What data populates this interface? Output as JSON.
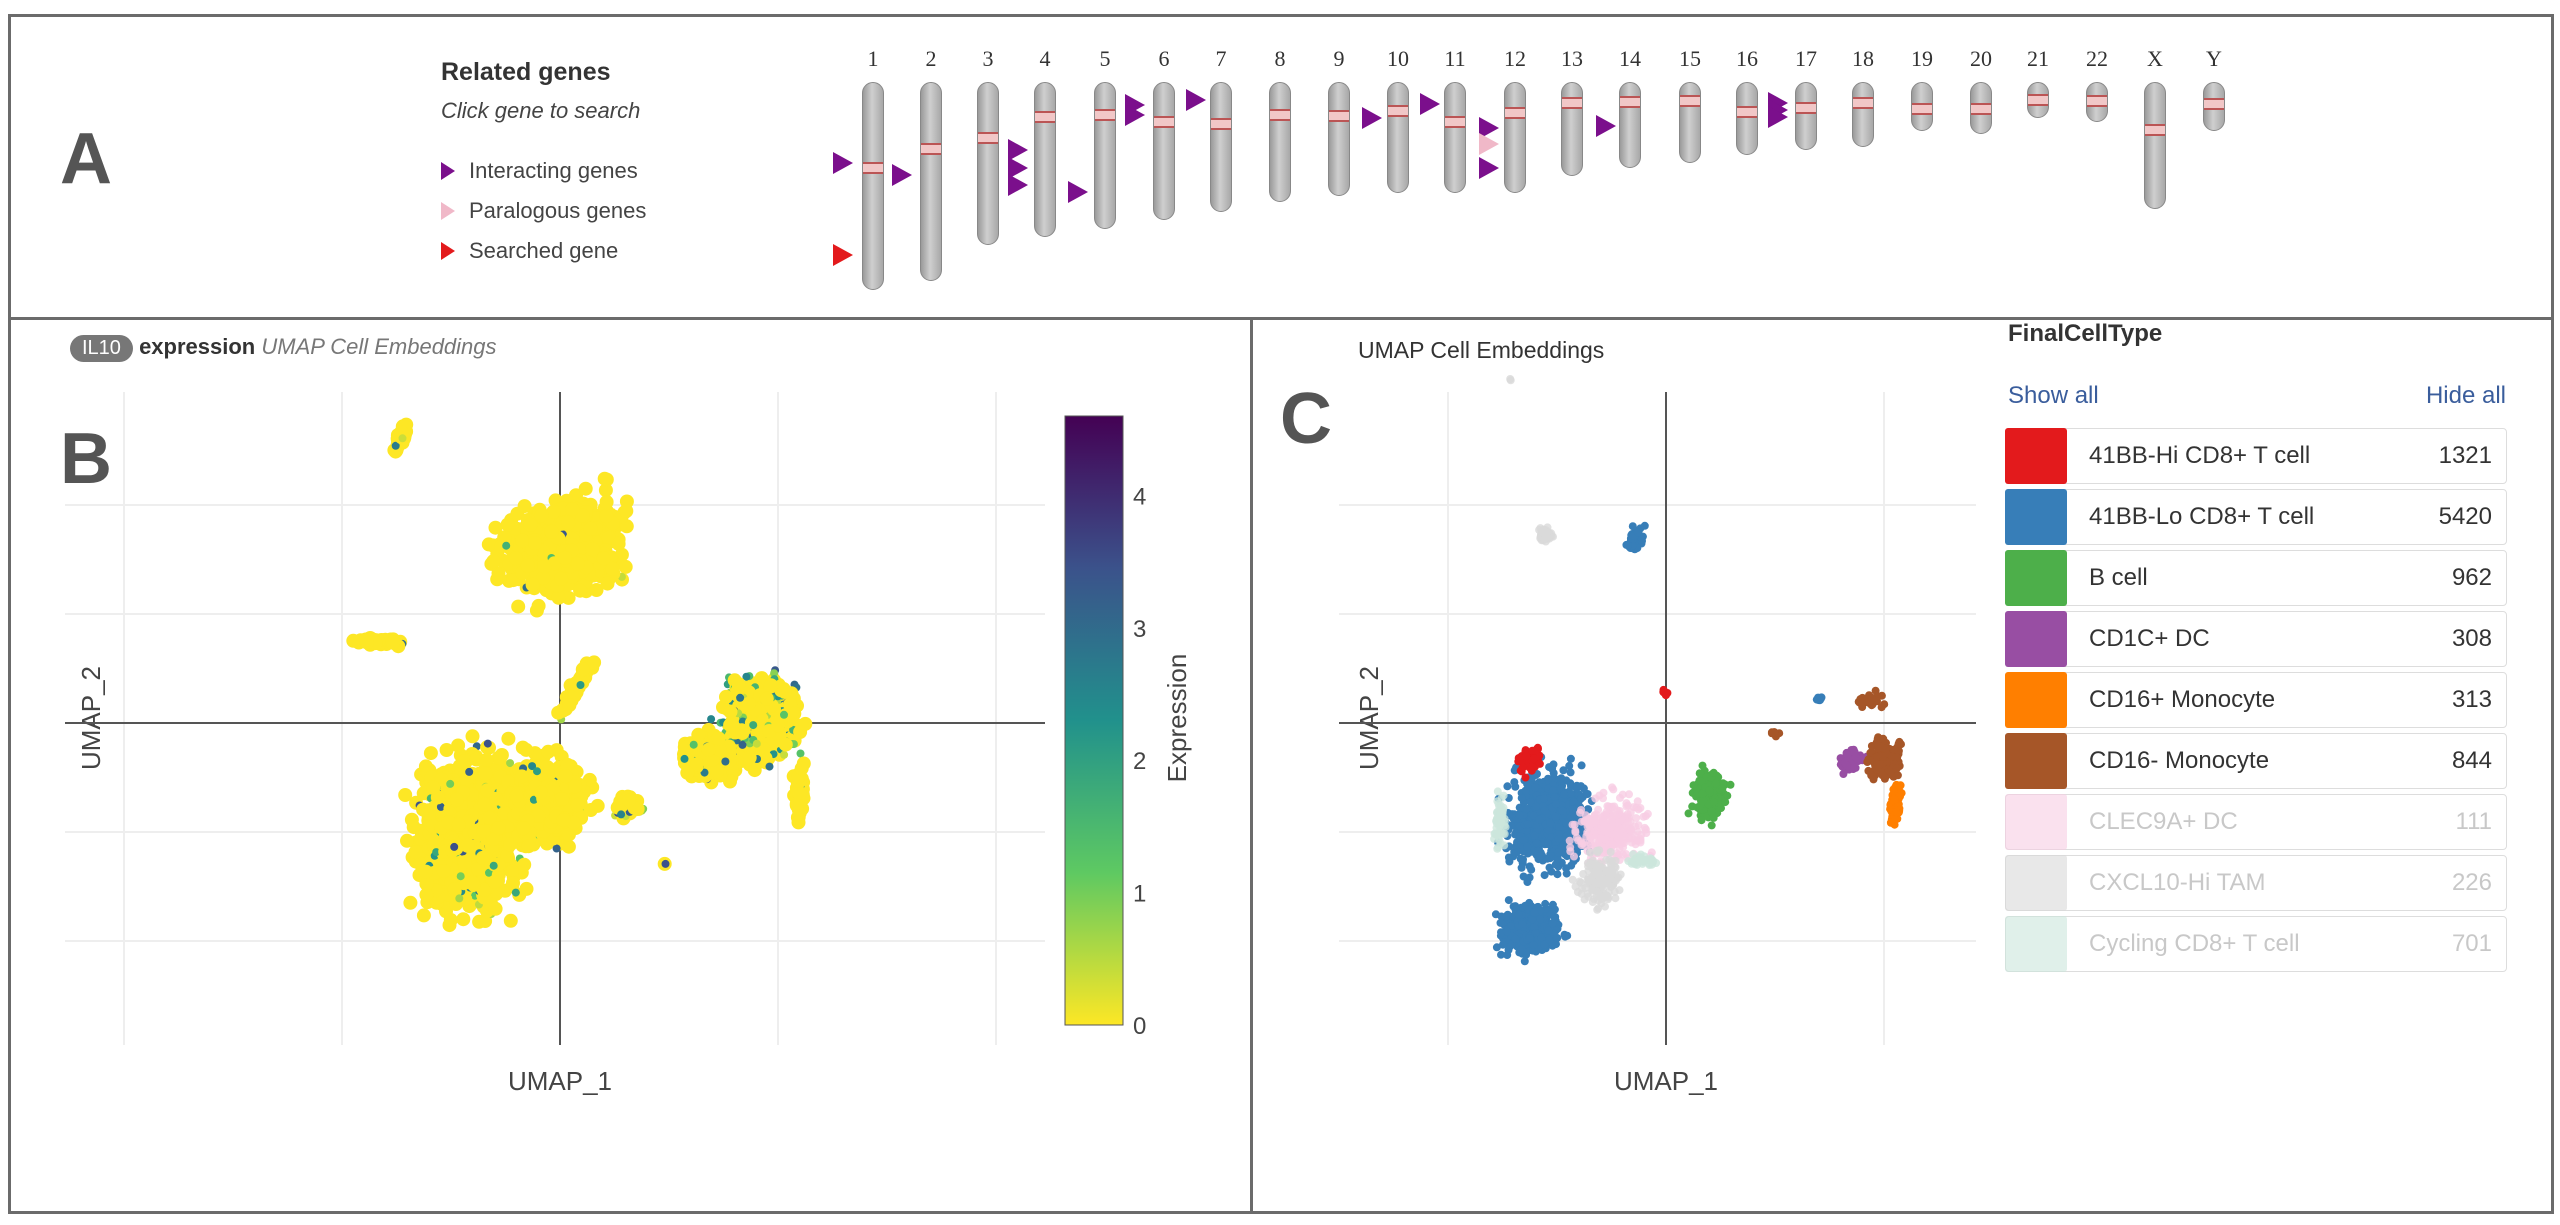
{
  "panel_a": {
    "letter": "A",
    "title": "Related genes",
    "subtitle": "Click gene to search",
    "legend": [
      {
        "label": "Interacting genes",
        "color": "#7b0f8c"
      },
      {
        "label": "Paralogous genes",
        "color": "#f0b8c8"
      },
      {
        "label": "Searched gene",
        "color": "#e31a1c"
      }
    ],
    "chromosomes": [
      "1",
      "2",
      "3",
      "4",
      "5",
      "6",
      "7",
      "8",
      "9",
      "10",
      "11",
      "12",
      "13",
      "14",
      "15",
      "16",
      "17",
      "18",
      "19",
      "20",
      "21",
      "22",
      "X",
      "Y"
    ]
  },
  "panel_b": {
    "letter": "B",
    "gene_badge": "IL10",
    "title_bold": "expression",
    "title_italic": "UMAP Cell Embeddings"
  },
  "panel_c": {
    "letter": "C",
    "title": "UMAP Cell Embeddings",
    "legend_title": "FinalCellType",
    "show_all": "Show all",
    "hide_all": "Hide all"
  },
  "chart_data": [
    {
      "type": "scatter",
      "xlabel": "UMAP_1",
      "ylabel": "UMAP_2",
      "grid": true,
      "colorbar": {
        "label": "Expression",
        "ticks": [
          "0",
          "1",
          "2",
          "3",
          "4"
        ],
        "range": [
          0,
          4.6
        ],
        "colorscale": "viridis-reversed"
      }
    },
    {
      "type": "scatter",
      "xlabel": "UMAP_1",
      "ylabel": "UMAP_2",
      "grid": true,
      "legend_placement": "right",
      "categories": [
        {
          "name": "41BB-Hi CD8+ T cell",
          "count": "1321",
          "color": "#e31a1c",
          "visible": true
        },
        {
          "name": "41BB-Lo CD8+ T cell",
          "count": "5420",
          "color": "#377eb8",
          "visible": true
        },
        {
          "name": "B cell",
          "count": "962",
          "color": "#4daf4a",
          "visible": true
        },
        {
          "name": "CD1C+ DC",
          "count": "308",
          "color": "#984ea3",
          "visible": true
        },
        {
          "name": "CD16+ Monocyte",
          "count": "313",
          "color": "#ff7f00",
          "visible": true
        },
        {
          "name": "CD16- Monocyte",
          "count": "844",
          "color": "#a65628",
          "visible": true
        },
        {
          "name": "CLEC9A+ DC",
          "count": "111",
          "color": "#f7cde3",
          "visible": false
        },
        {
          "name": "CXCL10-Hi TAM",
          "count": "226",
          "color": "#d9d9d9",
          "visible": false
        },
        {
          "name": "Cycling CD8+ T cell",
          "count": "701",
          "color": "#cce6dc",
          "visible": false
        }
      ]
    }
  ]
}
